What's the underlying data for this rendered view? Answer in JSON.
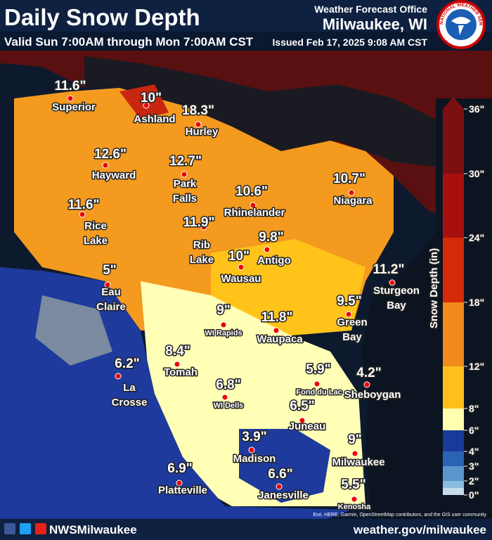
{
  "header": {
    "title": "Daily Snow Depth",
    "subtitle": "Valid Sun 7:00AM through Mon 7:00AM CST",
    "office_line1": "Weather Forecast Office",
    "office_line2": "Milwaukee, WI",
    "issued": "Issued Feb 17, 2025 9:08 AM CST",
    "seal": "NATIONAL WEATHER SERVICE"
  },
  "cities": [
    {
      "value": "11.6\"",
      "name": [
        "Superior"
      ]
    },
    {
      "value": "10\"",
      "name": [
        "Ashland"
      ]
    },
    {
      "value": "18.3\"",
      "name": [
        "Hurley"
      ]
    },
    {
      "value": "12.6\"",
      "name": [
        "Hayward"
      ]
    },
    {
      "value": "12.7\"",
      "name": [
        "Park",
        "Falls"
      ]
    },
    {
      "value": "10.6\"",
      "name": [
        "Rhinelander"
      ]
    },
    {
      "value": "11.6\"",
      "name": [
        "Rice",
        "Lake"
      ]
    },
    {
      "value": "11.9\"",
      "name": [
        "Rib",
        "Lake"
      ]
    },
    {
      "value": "9.8\"",
      "name": [
        "Antigo"
      ]
    },
    {
      "value": "10.7\"",
      "name": [
        "Niagara"
      ]
    },
    {
      "value": "10\"",
      "name": [
        "Wausau"
      ]
    },
    {
      "value": "5\"",
      "name": [
        "Eau",
        "Claire"
      ]
    },
    {
      "value": "11.2\"",
      "name": [
        "Sturgeon",
        "Bay"
      ]
    },
    {
      "value": "9\"",
      "name": [
        "WI Rapids"
      ]
    },
    {
      "value": "11.8\"",
      "name": [
        "Waupaca"
      ]
    },
    {
      "value": "9.5\"",
      "name": [
        "Green",
        "Bay"
      ]
    },
    {
      "value": "8.4\"",
      "name": [
        "Tomah"
      ]
    },
    {
      "value": "6.2\"",
      "name": [
        "La",
        "Crosse"
      ]
    },
    {
      "value": "5.9\"",
      "name": [
        "Fond du Lac"
      ]
    },
    {
      "value": "4.2\"",
      "name": [
        "Sheboygan"
      ]
    },
    {
      "value": "6.8\"",
      "name": [
        "WI Dells"
      ]
    },
    {
      "value": "6.5\"",
      "name": [
        "Juneau"
      ]
    },
    {
      "value": "3.9\"",
      "name": [
        "Madison"
      ]
    },
    {
      "value": "9\"",
      "name": [
        "Milwaukee"
      ]
    },
    {
      "value": "6.9\"",
      "name": [
        "Platteville"
      ]
    },
    {
      "value": "6.6\"",
      "name": [
        "Janesville"
      ]
    },
    {
      "value": "5.5\"",
      "name": [
        "Kenosha"
      ]
    }
  ],
  "legend": {
    "title": "Snow Depth (in)",
    "labels": [
      "36\"",
      "30\"",
      "24\"",
      "18\"",
      "12\"",
      "8\"",
      "6\"",
      "4\"",
      "3\"",
      "2\"",
      "0\""
    ]
  },
  "footer": {
    "social": "NWSMilwaukee",
    "website": "weather.gov/milwaukee",
    "attribution": "Esri, HERE, Garmin, OpenStreetMap contributors, and the GIS user community"
  }
}
